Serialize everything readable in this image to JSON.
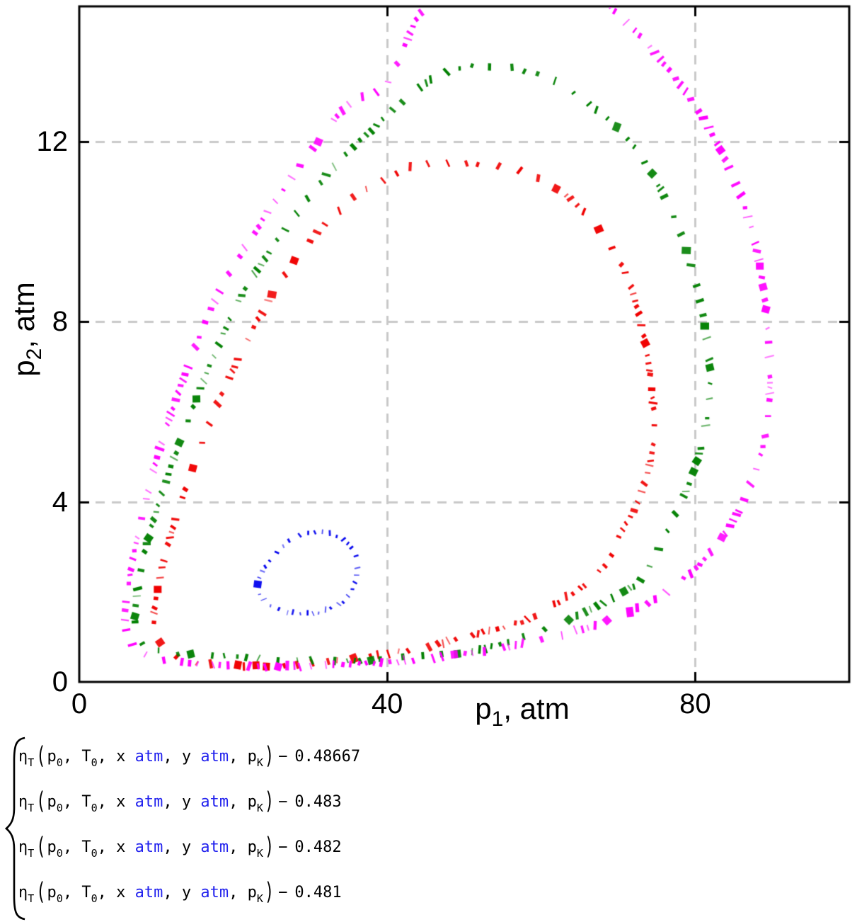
{
  "chart_data": {
    "type": "scatter",
    "title": "",
    "description": "Implicit contour plot (Mathcad style): efficiency function level curves drawn as scattered perpendicular dash marks",
    "grid": true,
    "grid_color": "#c9c9c9",
    "frame_color": "#000000",
    "x_axis": {
      "title": {
        "base": "p",
        "sub": "1",
        "rest": ", atm"
      },
      "ticks": [
        0,
        40,
        80
      ],
      "range": [
        0,
        100
      ],
      "gridlines": [
        40,
        80
      ]
    },
    "y_axis": {
      "title": {
        "base": "p",
        "sub": "2",
        "rest": ", atm"
      },
      "ticks": [
        0,
        4,
        8,
        12
      ],
      "range": [
        0,
        15
      ],
      "gridlines": [
        4,
        8,
        12
      ]
    },
    "series": [
      {
        "name": "ηT(p0,T0,x atm,y atm,pK) − 0.48667",
        "level": 0.48667,
        "color": "#0000ee",
        "seed": 11,
        "dash": {
          "gap": [
            6,
            15
          ],
          "len": [
            4,
            9
          ],
          "thick": [
            1.4,
            3.2
          ],
          "blob": 0.02,
          "cluster": 0.22
        },
        "points": [
          [
            36.1,
            2.66
          ],
          [
            35.2,
            3.02
          ],
          [
            33.2,
            3.25
          ],
          [
            30.6,
            3.32
          ],
          [
            27.8,
            3.19
          ],
          [
            25.5,
            2.85
          ],
          [
            23.6,
            2.41
          ],
          [
            23.2,
            2.06
          ],
          [
            24.3,
            1.77
          ],
          [
            26.4,
            1.58
          ],
          [
            29.2,
            1.52
          ],
          [
            32.2,
            1.6
          ],
          [
            34.6,
            1.84
          ],
          [
            35.8,
            2.22
          ]
        ]
      },
      {
        "name": "ηT(p0,T0,x atm,y atm,pK) − 0.483",
        "level": 0.483,
        "color": "#f00000",
        "seed": 23,
        "dash": {
          "gap": [
            6,
            28
          ],
          "len": [
            6,
            13
          ],
          "thick": [
            1.8,
            5.2
          ],
          "blob": 0.07,
          "cluster": 0.2
        },
        "points": [
          [
            44.9,
            11.5
          ],
          [
            52.2,
            11.5
          ],
          [
            59.6,
            11.19
          ],
          [
            66.0,
            10.36
          ],
          [
            70.6,
            9.18
          ],
          [
            72.9,
            8.0
          ],
          [
            74.3,
            6.58
          ],
          [
            74.6,
            5.35
          ],
          [
            72.9,
            4.14
          ],
          [
            70.2,
            3.27
          ],
          [
            68.8,
            2.72
          ],
          [
            66.3,
            2.25
          ],
          [
            63.0,
            1.86
          ],
          [
            58.2,
            1.39
          ],
          [
            54.1,
            1.18
          ],
          [
            50.0,
            0.99
          ],
          [
            43.1,
            0.71
          ],
          [
            33.0,
            0.47
          ],
          [
            21.9,
            0.36
          ],
          [
            13.2,
            0.52
          ],
          [
            9.8,
            1.18
          ],
          [
            10.7,
            2.49
          ],
          [
            13.2,
            3.98
          ],
          [
            16.3,
            5.48
          ],
          [
            20.1,
            6.97
          ],
          [
            24.9,
            8.55
          ],
          [
            30.4,
            9.88
          ],
          [
            36.2,
            10.83
          ],
          [
            40.8,
            11.25
          ]
        ]
      },
      {
        "name": "ηT(p0,T0,x atm,y atm,pK) − 0.482",
        "level": 0.482,
        "color": "#008000",
        "seed": 37,
        "dash": {
          "gap": [
            6,
            28
          ],
          "len": [
            6,
            13
          ],
          "thick": [
            1.8,
            5.2
          ],
          "blob": 0.08,
          "cluster": 0.2
        },
        "points": [
          [
            50.4,
            13.66
          ],
          [
            57.8,
            13.58
          ],
          [
            64.2,
            13.08
          ],
          [
            70.6,
            12.17
          ],
          [
            75.2,
            11.03
          ],
          [
            78.4,
            9.81
          ],
          [
            80.7,
            8.39
          ],
          [
            81.9,
            6.97
          ],
          [
            81.4,
            5.71
          ],
          [
            79.3,
            4.45
          ],
          [
            76.1,
            3.27
          ],
          [
            72.9,
            2.28
          ],
          [
            68.8,
            1.83
          ],
          [
            62.8,
            1.34
          ],
          [
            57.9,
            1.02
          ],
          [
            52.0,
            0.72
          ],
          [
            43.1,
            0.55
          ],
          [
            32.0,
            0.47
          ],
          [
            21.0,
            0.55
          ],
          [
            10.0,
            0.71
          ],
          [
            7.3,
            1.23
          ],
          [
            8.2,
            2.64
          ],
          [
            10.5,
            4.06
          ],
          [
            13.5,
            5.52
          ],
          [
            16.9,
            7.0
          ],
          [
            21.0,
            8.55
          ],
          [
            26.5,
            10.0
          ],
          [
            32.8,
            11.38
          ],
          [
            39.4,
            12.48
          ],
          [
            45.4,
            13.35
          ]
        ]
      },
      {
        "name": "ηT(p0,T0,x atm,y atm,pK) − 0.481",
        "level": 0.481,
        "color": "#ff00ff",
        "seed": 51,
        "dash": {
          "gap": [
            5,
            26
          ],
          "len": [
            6,
            14
          ],
          "thick": [
            1.8,
            5.2
          ],
          "blob": 0.08,
          "cluster": 0.2
        },
        "points": [
          [
            39.9,
            13.27
          ],
          [
            44.0,
            14.76
          ],
          [
            49.5,
            15.87
          ],
          [
            57.8,
            16.26
          ],
          [
            65.1,
            15.55
          ],
          [
            69.4,
            14.92
          ],
          [
            75.2,
            13.87
          ],
          [
            80.7,
            12.61
          ],
          [
            84.9,
            11.22
          ],
          [
            87.7,
            9.81
          ],
          [
            89.2,
            8.23
          ],
          [
            89.7,
            6.58
          ],
          [
            89.0,
            5.4
          ],
          [
            87.0,
            4.3
          ],
          [
            84.4,
            3.43
          ],
          [
            80.3,
            2.57
          ],
          [
            76.1,
            1.97
          ],
          [
            73.2,
            1.7
          ],
          [
            69.7,
            1.43
          ],
          [
            64.2,
            1.12
          ],
          [
            58.2,
            0.88
          ],
          [
            51.5,
            0.66
          ],
          [
            44.9,
            0.52
          ],
          [
            39.4,
            0.43
          ],
          [
            28.4,
            0.35
          ],
          [
            17.4,
            0.38
          ],
          [
            8.6,
            0.61
          ],
          [
            6.0,
            1.23
          ],
          [
            6.8,
            2.57
          ],
          [
            8.6,
            3.98
          ],
          [
            10.9,
            5.43
          ],
          [
            13.9,
            6.9
          ],
          [
            17.6,
            8.47
          ],
          [
            22.7,
            9.96
          ],
          [
            28.4,
            11.38
          ],
          [
            34.8,
            12.8
          ]
        ]
      }
    ]
  },
  "equations": {
    "operator": "−",
    "unit_color": "#2222ee",
    "rows": [
      {
        "fn": "η",
        "fn_sub": "T",
        "args": [
          {
            "t": "p",
            "sub": "0"
          },
          {
            "t": "T",
            "sub": "0"
          },
          {
            "t": "x",
            "unit": "atm"
          },
          {
            "t": "y",
            "unit": "atm"
          },
          {
            "t": "p",
            "sub": "K"
          }
        ],
        "value": "0.48667"
      },
      {
        "fn": "η",
        "fn_sub": "T",
        "args": [
          {
            "t": "p",
            "sub": "0"
          },
          {
            "t": "T",
            "sub": "0"
          },
          {
            "t": "x",
            "unit": "atm"
          },
          {
            "t": "y",
            "unit": "atm"
          },
          {
            "t": "p",
            "sub": "K"
          }
        ],
        "value": "0.483"
      },
      {
        "fn": "η",
        "fn_sub": "T",
        "args": [
          {
            "t": "p",
            "sub": "0"
          },
          {
            "t": "T",
            "sub": "0"
          },
          {
            "t": "x",
            "unit": "atm"
          },
          {
            "t": "y",
            "unit": "atm"
          },
          {
            "t": "p",
            "sub": "K"
          }
        ],
        "value": "0.482"
      },
      {
        "fn": "η",
        "fn_sub": "T",
        "args": [
          {
            "t": "p",
            "sub": "0"
          },
          {
            "t": "T",
            "sub": "0"
          },
          {
            "t": "x",
            "unit": "atm"
          },
          {
            "t": "y",
            "unit": "atm"
          },
          {
            "t": "p",
            "sub": "K"
          }
        ],
        "value": "0.481"
      }
    ]
  }
}
